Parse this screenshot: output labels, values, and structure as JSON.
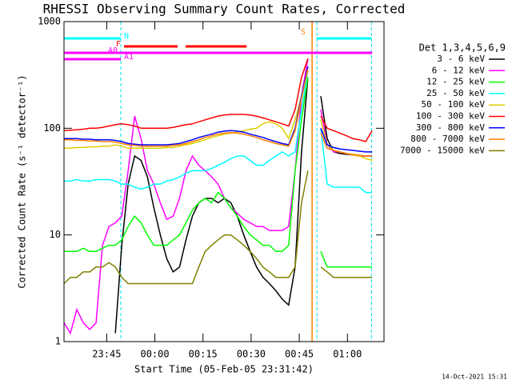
{
  "chart_data": {
    "type": "line",
    "title": "RHESSI Observing Summary Count Rates, Corrected",
    "xlabel": "Start Time (05-Feb-05 23:31:42)",
    "ylabel": "Corrected Count Rate (s⁻¹ detector⁻¹)",
    "legend_title": "Det 1,3,4,5,6,9",
    "footer": "14-Oct-2021 15:31",
    "log_y": true,
    "xlim": [
      0,
      99.7
    ],
    "ylim": [
      1,
      1000
    ],
    "xticks": [
      {
        "value": 13.3,
        "label": "23:45"
      },
      {
        "value": 28.3,
        "label": "00:00"
      },
      {
        "value": 43.3,
        "label": "00:15"
      },
      {
        "value": 58.3,
        "label": "00:30"
      },
      {
        "value": 73.3,
        "label": "00:45"
      },
      {
        "value": 88.3,
        "label": "01:00"
      }
    ],
    "yticks": [
      1,
      10,
      100,
      1000
    ],
    "x": [
      0,
      2,
      4,
      6,
      8,
      10,
      12,
      14,
      16,
      18,
      20,
      22,
      24,
      26,
      28,
      30,
      32,
      34,
      36,
      38,
      40,
      42,
      44,
      46,
      48,
      50,
      52,
      54,
      56,
      58,
      60,
      62,
      64,
      66,
      68,
      70,
      72,
      74,
      76,
      78,
      80,
      82,
      84,
      86,
      88,
      90,
      92,
      94,
      96
    ],
    "series": [
      {
        "name": "3 - 6 keV",
        "color": "#000000",
        "values": [
          null,
          null,
          null,
          null,
          null,
          null,
          null,
          null,
          1.2,
          8,
          30,
          55,
          50,
          35,
          18,
          10,
          6,
          4.5,
          5,
          9,
          15,
          20,
          22,
          22,
          20,
          22,
          20,
          15,
          10,
          7,
          5,
          4,
          3.5,
          3,
          2.5,
          2.2,
          5,
          60,
          300,
          null,
          200,
          80,
          60,
          58,
          57,
          56,
          55,
          55,
          55
        ]
      },
      {
        "name": "6 - 12 keV",
        "color": "#ff00ff",
        "values": [
          1.5,
          1.2,
          2,
          1.5,
          1.3,
          1.5,
          8,
          12,
          13,
          15,
          40,
          130,
          80,
          40,
          30,
          20,
          14,
          15,
          22,
          40,
          55,
          45,
          40,
          35,
          30,
          22,
          18,
          16,
          14,
          13,
          12,
          12,
          11,
          11,
          11,
          12,
          40,
          200,
          450,
          null,
          150,
          70,
          60,
          60,
          58,
          56,
          55,
          55,
          55
        ]
      },
      {
        "name": "12 - 25 keV",
        "color": "#00ff00",
        "values": [
          7,
          7,
          7,
          7.5,
          7,
          7,
          7.5,
          8,
          8,
          9,
          12,
          15,
          13,
          10,
          8,
          8,
          8,
          9,
          10,
          13,
          17,
          20,
          22,
          20,
          25,
          22,
          18,
          15,
          12,
          10,
          9,
          8,
          8,
          7,
          7,
          8,
          40,
          120,
          300,
          null,
          7,
          5,
          5,
          5,
          5,
          5,
          5,
          5,
          5
        ]
      },
      {
        "name": "25 - 50 keV",
        "color": "#00ffff",
        "values": [
          32,
          32,
          33,
          32,
          32,
          33,
          33,
          33,
          32,
          30,
          30,
          28,
          27,
          28,
          30,
          30,
          32,
          33,
          35,
          38,
          40,
          40,
          40,
          42,
          45,
          48,
          52,
          55,
          55,
          50,
          45,
          45,
          50,
          55,
          60,
          55,
          60,
          150,
          350,
          null,
          100,
          30,
          28,
          28,
          28,
          28,
          28,
          25,
          25
        ]
      },
      {
        "name": "50 - 100 keV",
        "color": "#e0d000",
        "values": [
          65,
          65,
          66,
          66,
          67,
          67,
          68,
          68,
          70,
          68,
          65,
          65,
          65,
          65,
          65,
          65,
          66,
          66,
          68,
          70,
          72,
          75,
          78,
          82,
          85,
          88,
          90,
          92,
          95,
          98,
          100,
          110,
          115,
          110,
          100,
          80,
          120,
          200,
          350,
          null,
          120,
          70,
          62,
          60,
          58,
          56,
          55,
          52,
          50
        ]
      },
      {
        "name": "100 - 300 keV",
        "color": "#ff0000",
        "values": [
          95,
          96,
          97,
          98,
          100,
          100,
          102,
          105,
          108,
          110,
          108,
          105,
          100,
          100,
          100,
          100,
          100,
          102,
          105,
          108,
          110,
          115,
          120,
          125,
          130,
          133,
          135,
          135,
          135,
          133,
          130,
          125,
          120,
          115,
          110,
          105,
          150,
          300,
          450,
          null,
          130,
          100,
          95,
          90,
          85,
          80,
          78,
          75,
          95
        ]
      },
      {
        "name": "300 - 800 keV",
        "color": "#0000ff",
        "values": [
          80,
          80,
          80,
          79,
          79,
          78,
          78,
          78,
          77,
          75,
          72,
          71,
          70,
          70,
          70,
          70,
          70,
          71,
          72,
          75,
          78,
          82,
          85,
          88,
          92,
          94,
          95,
          94,
          92,
          88,
          85,
          82,
          78,
          75,
          72,
          70,
          100,
          200,
          380,
          null,
          100,
          70,
          66,
          64,
          63,
          62,
          61,
          60,
          60
        ]
      },
      {
        "name": "800 - 7000 keV",
        "color": "#ff8000",
        "values": [
          78,
          78,
          77,
          77,
          76,
          76,
          75,
          75,
          74,
          72,
          70,
          69,
          68,
          68,
          68,
          68,
          68,
          69,
          70,
          72,
          75,
          78,
          82,
          85,
          88,
          90,
          91,
          90,
          88,
          85,
          82,
          78,
          75,
          72,
          70,
          68,
          95,
          190,
          360,
          null,
          90,
          65,
          62,
          60,
          58,
          57,
          56,
          55,
          55
        ]
      },
      {
        "name": "7000 - 15000 keV",
        "color": "#808000",
        "values": [
          3.5,
          4,
          4,
          4.5,
          4.5,
          5,
          5,
          5.5,
          5,
          4,
          3.5,
          3.5,
          3.5,
          3.5,
          3.5,
          3.5,
          3.5,
          3.5,
          3.5,
          3.5,
          3.5,
          5,
          7,
          8,
          9,
          10,
          10,
          9,
          8,
          7,
          6,
          5,
          4.5,
          4,
          4,
          4,
          5,
          20,
          40,
          null,
          5,
          4.5,
          4,
          4,
          4,
          4,
          4,
          4,
          4
        ]
      }
    ],
    "flags": [
      {
        "label": "N",
        "color": "#00ffff",
        "intervals": [
          [
            0,
            17.7
          ],
          [
            78.8,
            95.8
          ]
        ]
      },
      {
        "label": "F",
        "color": "#ff0000",
        "intervals": [
          [
            18.7,
            35.4
          ],
          [
            37.9,
            56.9
          ]
        ]
      },
      {
        "label": "A0",
        "color": "#ff00ff",
        "intervals": [
          [
            0,
            96
          ]
        ]
      },
      {
        "label": "A1",
        "color": "#ff00ff",
        "intervals": [
          [
            0,
            17.7
          ]
        ]
      },
      {
        "label": "S",
        "color": "#ff8000",
        "intervals": [
          [
            77.3,
            77.5
          ]
        ]
      }
    ],
    "markers": [
      17.7,
      77.3,
      78.8,
      95.8
    ]
  }
}
